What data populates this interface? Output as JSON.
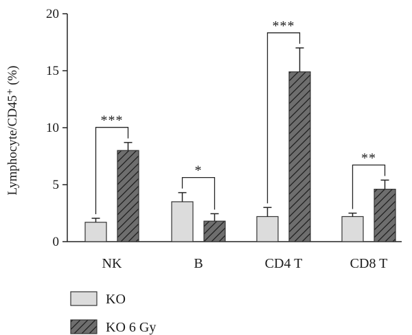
{
  "chart_data": {
    "type": "bar",
    "categories": [
      "NK",
      "B",
      "CD4 T",
      "CD8 T"
    ],
    "series": [
      {
        "name": "KO",
        "values": [
          1.7,
          3.5,
          2.2,
          2.2
        ],
        "errors": [
          0.35,
          0.8,
          0.8,
          0.3
        ],
        "color": "#dcdcdc",
        "pattern": "solid"
      },
      {
        "name": "KO 6 Gy",
        "values": [
          8.0,
          1.8,
          14.9,
          4.6
        ],
        "errors": [
          0.7,
          0.65,
          2.1,
          0.8
        ],
        "color": "#6e6e6e",
        "pattern": "hatched"
      }
    ],
    "ylabel": "Lymphocyte/CD45⁺ (%)",
    "ylim": [
      0,
      20
    ],
    "yticks": [
      "0",
      "5",
      "10",
      "15",
      "20"
    ],
    "significance": [
      "***",
      "*",
      "***",
      "**"
    ],
    "legend_position": "bottom-left",
    "grid": false
  }
}
